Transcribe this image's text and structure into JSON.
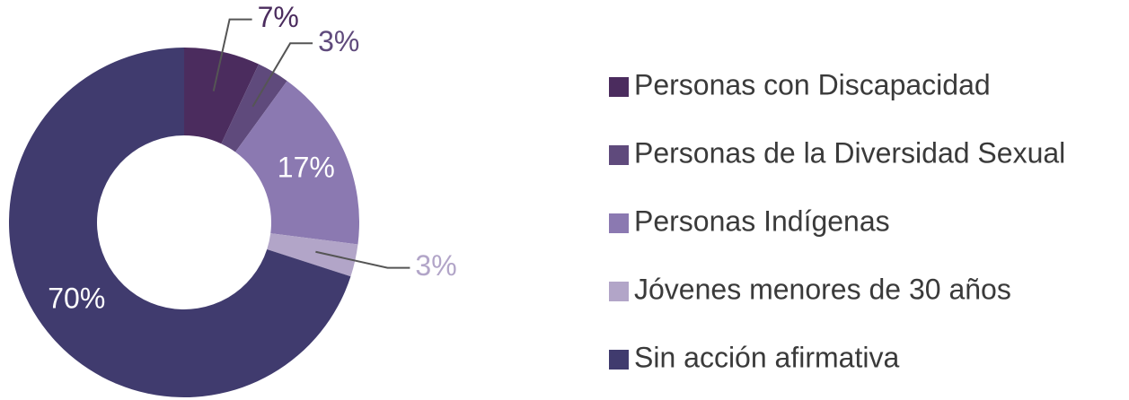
{
  "chart_data": {
    "type": "donut",
    "categories": [
      "Personas con Discapacidad",
      "Personas de la Diversidad Sexual",
      "Personas Indígenas",
      "Jóvenes menores de 30 años",
      "Sin acción afirmativa"
    ],
    "values": [
      7,
      3,
      17,
      3,
      70
    ],
    "value_labels": [
      "7%",
      "3%",
      "17%",
      "3%",
      "70%"
    ],
    "colors": [
      "#4b2c5e",
      "#5f4a7c",
      "#8b79b1",
      "#b2a5c8",
      "#403b6e"
    ],
    "legend": "right"
  }
}
